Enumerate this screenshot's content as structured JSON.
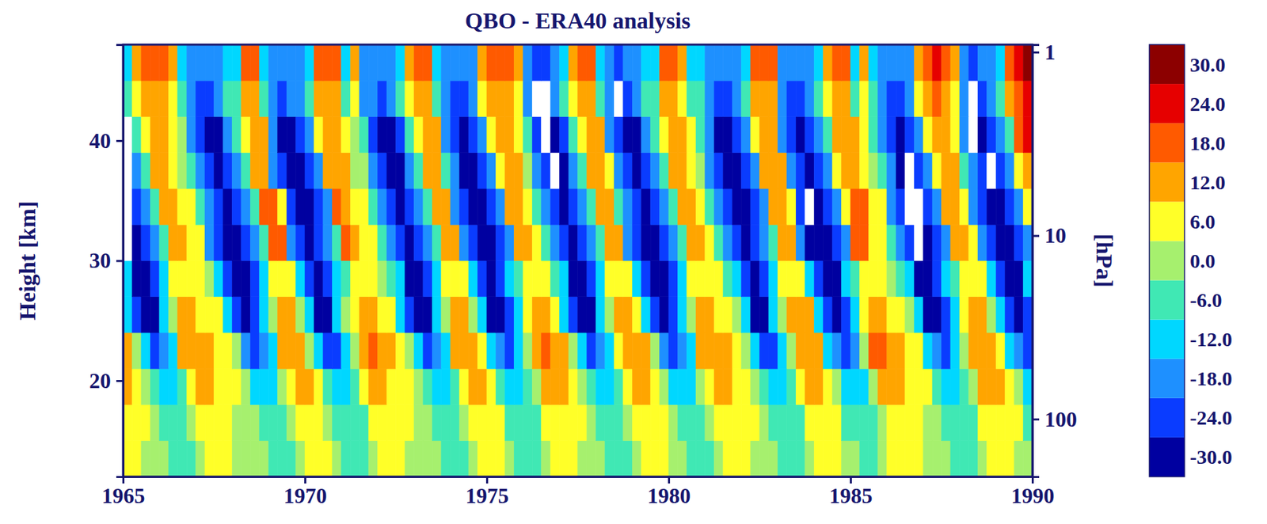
{
  "chart_data": {
    "type": "heatmap",
    "title": "QBO - ERA40 analysis",
    "y_label": "Height [km]",
    "y2_label": "[hPa]",
    "xlim": [
      1965,
      1990
    ],
    "xticks": [
      1965,
      1970,
      1975,
      1980,
      1985,
      1990
    ],
    "ylim": [
      12,
      48
    ],
    "yticks": [
      20,
      30,
      40
    ],
    "y2lim": [
      206,
      0.91
    ],
    "y2ticks": [
      1,
      10,
      100
    ],
    "log": "y2",
    "x": [
      1965.125,
      1965.375,
      1965.625,
      1965.875,
      1966.125,
      1966.375,
      1966.625,
      1966.875,
      1967.125,
      1967.375,
      1967.625,
      1967.875,
      1968.125,
      1968.375,
      1968.625,
      1968.875,
      1969.125,
      1969.375,
      1969.625,
      1969.875,
      1970.125,
      1970.375,
      1970.625,
      1970.875,
      1971.125,
      1971.375,
      1971.625,
      1971.875,
      1972.125,
      1972.375,
      1972.625,
      1972.875,
      1973.125,
      1973.375,
      1973.625,
      1973.875,
      1974.125,
      1974.375,
      1974.625,
      1974.875,
      1975.125,
      1975.375,
      1975.625,
      1975.875,
      1976.125,
      1976.375,
      1976.625,
      1976.875,
      1977.125,
      1977.375,
      1977.625,
      1977.875,
      1978.125,
      1978.375,
      1978.625,
      1978.875,
      1979.125,
      1979.375,
      1979.625,
      1979.875,
      1980.125,
      1980.375,
      1980.625,
      1980.875,
      1981.125,
      1981.375,
      1981.625,
      1981.875,
      1982.125,
      1982.375,
      1982.625,
      1982.875,
      1983.125,
      1983.375,
      1983.625,
      1983.875,
      1984.125,
      1984.375,
      1984.625,
      1984.875,
      1985.125,
      1985.375,
      1985.625,
      1985.875,
      1986.125,
      1986.375,
      1986.625,
      1986.875,
      1987.125,
      1987.375,
      1987.625,
      1987.875,
      1988.125,
      1988.375,
      1988.625,
      1988.875,
      1989.125,
      1989.375,
      1989.625,
      1989.875
    ],
    "y": [
      13.5,
      16.5,
      19.5,
      22.5,
      25.5,
      28.5,
      31.5,
      34.5,
      37.5,
      40.5,
      43.5,
      46.5
    ],
    "values": [
      [
        3,
        3,
        1,
        1,
        -2,
        -4,
        -4,
        -4,
        -2,
        3,
        3,
        3,
        1,
        1,
        0,
        -2,
        -4,
        -4,
        -4,
        1,
        3,
        3,
        3,
        -2,
        -4,
        -4,
        -4,
        -2,
        3,
        3,
        3,
        1,
        1,
        0,
        -2,
        -4,
        -4,
        -4,
        -2,
        3,
        3,
        3,
        1,
        -4,
        -4,
        -4,
        -2,
        3,
        3,
        3,
        1,
        1,
        -2,
        -4,
        -4,
        -4,
        -2,
        3,
        3,
        3,
        1,
        -2,
        -4,
        -4,
        -4,
        1,
        3,
        3,
        3,
        1,
        1,
        -2,
        -4,
        -4,
        -4,
        -2,
        3,
        3,
        3,
        1,
        -2,
        -4,
        -4,
        -2,
        3,
        3,
        3,
        3,
        1,
        1,
        -2,
        -4,
        -4,
        -4,
        -2,
        3,
        3,
        3,
        1,
        1
      ],
      [
        5,
        3,
        3,
        -2,
        -5,
        -9,
        -5,
        -2,
        5,
        5,
        5,
        3,
        1,
        1,
        -2,
        -5,
        -9,
        -5,
        -2,
        5,
        5,
        5,
        -2,
        -5,
        -9,
        -9,
        -5,
        5,
        5,
        5,
        3,
        3,
        1,
        -2,
        -5,
        -9,
        -5,
        -2,
        5,
        5,
        5,
        3,
        -5,
        -9,
        -9,
        -5,
        3,
        5,
        5,
        3,
        3,
        -2,
        -5,
        -9,
        -5,
        -2,
        5,
        5,
        5,
        3,
        -2,
        -5,
        -9,
        -5,
        -2,
        5,
        5,
        5,
        3,
        3,
        -2,
        -5,
        -9,
        -9,
        -5,
        5,
        5,
        5,
        3,
        -5,
        -9,
        -9,
        -5,
        -2,
        5,
        5,
        5,
        3,
        1,
        1,
        -5,
        -9,
        -9,
        -5,
        3,
        5,
        5,
        3,
        3,
        -5
      ],
      [
        10,
        6,
        -1,
        -6,
        -15,
        -11,
        -6,
        6,
        10,
        10,
        6,
        3,
        3,
        -1,
        -11,
        -15,
        -11,
        -1,
        6,
        10,
        10,
        6,
        -6,
        -15,
        -15,
        -6,
        6,
        10,
        10,
        6,
        6,
        3,
        -1,
        -6,
        -15,
        -11,
        -6,
        6,
        10,
        10,
        6,
        -6,
        -11,
        -15,
        -6,
        -1,
        10,
        10,
        10,
        6,
        -1,
        -6,
        -15,
        -11,
        -6,
        6,
        10,
        10,
        6,
        -1,
        -11,
        -15,
        -11,
        -1,
        6,
        10,
        10,
        6,
        3,
        -1,
        -6,
        -15,
        -15,
        -6,
        6,
        10,
        10,
        6,
        -1,
        -11,
        -15,
        -11,
        -1,
        10,
        10,
        10,
        6,
        6,
        3,
        -6,
        -11,
        -15,
        -6,
        -1,
        10,
        14,
        10,
        6,
        -1,
        -11
      ],
      [
        10,
        -3,
        -11,
        -24,
        -19,
        -11,
        10,
        14,
        14,
        10,
        6,
        6,
        -3,
        -19,
        -24,
        -19,
        -11,
        10,
        14,
        14,
        -3,
        -11,
        -24,
        -24,
        -11,
        -3,
        10,
        18,
        14,
        10,
        6,
        -3,
        -11,
        -24,
        -19,
        -11,
        10,
        14,
        14,
        6,
        -11,
        -19,
        -24,
        -11,
        -3,
        14,
        18,
        14,
        10,
        -3,
        -11,
        -24,
        -19,
        -11,
        6,
        14,
        14,
        10,
        -3,
        -19,
        -24,
        -19,
        -11,
        10,
        14,
        14,
        10,
        6,
        -3,
        -11,
        -24,
        -24,
        -11,
        -3,
        10,
        14,
        10,
        -11,
        -19,
        -24,
        -19,
        -3,
        18,
        18,
        14,
        10,
        6,
        6,
        -11,
        -19,
        -24,
        -11,
        -3,
        10,
        14,
        14,
        6,
        -11,
        -19,
        -24
      ],
      [
        -14,
        -24,
        -30,
        -30,
        -14,
        -3,
        10,
        10,
        7,
        4,
        4,
        -14,
        -24,
        -30,
        -24,
        -14,
        -3,
        10,
        10,
        -3,
        -14,
        -30,
        -30,
        -14,
        -3,
        7,
        10,
        10,
        7,
        4,
        -14,
        -24,
        -30,
        -30,
        -14,
        -3,
        10,
        10,
        -3,
        -14,
        -30,
        -30,
        -24,
        -14,
        7,
        10,
        10,
        4,
        -14,
        -24,
        -30,
        -30,
        -14,
        -3,
        10,
        10,
        4,
        -14,
        -24,
        -30,
        -24,
        -14,
        -3,
        10,
        10,
        7,
        4,
        -3,
        -14,
        -30,
        -30,
        -14,
        -3,
        14,
        14,
        10,
        -14,
        -24,
        -30,
        -24,
        -14,
        7,
        10,
        10,
        7,
        4,
        -3,
        -14,
        -30,
        -30,
        -24,
        -14,
        7,
        10,
        10,
        -3,
        -14,
        -24,
        -30,
        -24
      ],
      [
        -15,
        -28,
        -28,
        -24,
        -15,
        5,
        8,
        8,
        5,
        2,
        -15,
        -24,
        -28,
        -28,
        -24,
        -15,
        8,
        8,
        5,
        -15,
        -24,
        -28,
        -24,
        -15,
        -4,
        8,
        8,
        5,
        2,
        -4,
        -15,
        -28,
        -28,
        -24,
        -15,
        5,
        8,
        8,
        -15,
        -24,
        -28,
        -24,
        -15,
        -4,
        8,
        8,
        5,
        -4,
        -15,
        -28,
        -28,
        -24,
        -15,
        5,
        8,
        8,
        -15,
        -24,
        -28,
        -28,
        -24,
        -15,
        8,
        8,
        5,
        5,
        -4,
        -15,
        -24,
        -28,
        -24,
        -15,
        5,
        8,
        8,
        -15,
        -24,
        -28,
        -28,
        -15,
        -4,
        8,
        8,
        5,
        2,
        -4,
        -15,
        -28,
        -28,
        -24,
        -15,
        -4,
        8,
        8,
        5,
        -15,
        -24,
        -28,
        -28,
        -15
      ],
      [
        -36,
        -30,
        -26,
        -16,
        -5,
        12,
        12,
        7,
        3,
        -16,
        -26,
        -30,
        -30,
        -26,
        -16,
        -5,
        18,
        18,
        -16,
        -26,
        -30,
        -26,
        -16,
        -5,
        18,
        12,
        7,
        3,
        -5,
        -16,
        -26,
        -30,
        -26,
        -16,
        -5,
        12,
        12,
        -16,
        -26,
        -30,
        -30,
        -26,
        -16,
        12,
        12,
        7,
        -5,
        -16,
        -26,
        -30,
        -26,
        -16,
        -5,
        12,
        12,
        -16,
        -26,
        -30,
        -30,
        -26,
        -16,
        -5,
        12,
        12,
        7,
        -5,
        -16,
        -26,
        -30,
        -26,
        -16,
        -5,
        12,
        12,
        -16,
        -30,
        -30,
        -30,
        -26,
        -16,
        18,
        18,
        7,
        7,
        -5,
        -16,
        -26,
        -36,
        -30,
        -26,
        -16,
        12,
        12,
        3,
        -16,
        -26,
        -30,
        -30,
        -26,
        -16
      ],
      [
        -36,
        -26,
        -16,
        -5,
        12,
        12,
        7,
        3,
        -5,
        -16,
        -26,
        -30,
        -26,
        -16,
        -5,
        18,
        18,
        6,
        -26,
        -30,
        -30,
        -26,
        -16,
        18,
        12,
        7,
        3,
        -5,
        -16,
        -26,
        -30,
        -26,
        -16,
        -5,
        12,
        12,
        -16,
        -26,
        -30,
        -30,
        -26,
        -16,
        12,
        12,
        7,
        -5,
        -16,
        -26,
        -30,
        -26,
        -16,
        -5,
        12,
        12,
        -5,
        -16,
        -26,
        -30,
        -26,
        -16,
        -5,
        12,
        12,
        7,
        -5,
        -16,
        -26,
        -30,
        -30,
        -26,
        -16,
        12,
        12,
        7,
        -26,
        -36,
        -30,
        -26,
        -16,
        7,
        18,
        18,
        7,
        3,
        -16,
        -26,
        -36,
        -36,
        -26,
        -16,
        12,
        12,
        7,
        -16,
        -26,
        -30,
        -30,
        -26,
        -16,
        7
      ],
      [
        -36,
        -16,
        -5,
        10,
        10,
        6,
        2,
        -5,
        -16,
        -26,
        -30,
        -26,
        -16,
        -5,
        14,
        14,
        -16,
        -26,
        -30,
        -30,
        -26,
        -16,
        10,
        14,
        10,
        2,
        2,
        -16,
        -26,
        -30,
        -30,
        -16,
        -5,
        10,
        10,
        -5,
        -16,
        -30,
        -30,
        -26,
        -16,
        6,
        10,
        10,
        2,
        -16,
        -26,
        -36,
        -30,
        -16,
        -5,
        10,
        10,
        6,
        -16,
        -26,
        -30,
        -26,
        -16,
        -5,
        10,
        10,
        6,
        2,
        -16,
        -26,
        -30,
        -30,
        -26,
        -16,
        10,
        10,
        10,
        -16,
        -26,
        -30,
        -26,
        -16,
        6,
        10,
        10,
        6,
        2,
        -5,
        -16,
        -30,
        -36,
        -26,
        -16,
        6,
        10,
        10,
        -5,
        -16,
        -26,
        -36,
        -26,
        -16,
        6,
        14
      ],
      [
        -36,
        -5,
        6,
        10,
        10,
        6,
        2,
        -16,
        -26,
        -30,
        -30,
        -16,
        -5,
        6,
        10,
        10,
        -16,
        -30,
        -30,
        -26,
        -16,
        6,
        10,
        10,
        6,
        2,
        -5,
        -26,
        -30,
        -30,
        -26,
        -5,
        6,
        10,
        10,
        -16,
        -26,
        -30,
        -26,
        -16,
        6,
        10,
        10,
        6,
        -5,
        -26,
        -36,
        -30,
        -26,
        -5,
        6,
        10,
        10,
        -16,
        -26,
        -30,
        -30,
        -16,
        -5,
        6,
        10,
        10,
        6,
        -5,
        -16,
        -30,
        -30,
        -26,
        -16,
        6,
        10,
        10,
        -16,
        -26,
        -30,
        -26,
        -16,
        -5,
        10,
        10,
        10,
        6,
        -5,
        -16,
        -26,
        -30,
        -26,
        -16,
        6,
        14,
        14,
        6,
        -16,
        -36,
        -30,
        -26,
        -16,
        -5,
        18,
        24
      ],
      [
        -5,
        8,
        14,
        14,
        14,
        8,
        -4,
        -16,
        -26,
        -26,
        -16,
        -5,
        -4,
        14,
        14,
        -5,
        -16,
        -26,
        -16,
        -16,
        -4,
        14,
        14,
        14,
        -4,
        8,
        -16,
        -16,
        -26,
        -16,
        -5,
        8,
        14,
        14,
        -5,
        -16,
        -26,
        -26,
        -16,
        8,
        14,
        14,
        14,
        8,
        -16,
        -36,
        -36,
        -16,
        -5,
        8,
        14,
        14,
        -4,
        -16,
        -36,
        -26,
        -16,
        -5,
        -4,
        14,
        14,
        8,
        -4,
        -5,
        -16,
        -26,
        -26,
        -16,
        -4,
        14,
        14,
        14,
        -16,
        -26,
        -26,
        -16,
        -5,
        8,
        14,
        14,
        -4,
        8,
        -5,
        -16,
        -26,
        -26,
        -16,
        8,
        14,
        18,
        14,
        8,
        -16,
        -36,
        -26,
        -16,
        -5,
        14,
        18,
        24
      ],
      [
        -10,
        12,
        18,
        18,
        18,
        12,
        -10,
        -20,
        -20,
        -20,
        -20,
        -10,
        -10,
        18,
        18,
        -10,
        -20,
        -20,
        -20,
        -20,
        -10,
        18,
        18,
        18,
        -10,
        12,
        -20,
        -20,
        -20,
        -20,
        -10,
        12,
        18,
        18,
        -10,
        -20,
        -20,
        -20,
        -20,
        12,
        18,
        18,
        18,
        12,
        -20,
        -24,
        -24,
        -20,
        -10,
        12,
        18,
        18,
        -10,
        -20,
        -24,
        -20,
        -20,
        -10,
        -10,
        18,
        18,
        12,
        -10,
        -10,
        -20,
        -20,
        -20,
        -20,
        -10,
        18,
        18,
        18,
        -20,
        -20,
        -20,
        -20,
        -10,
        12,
        18,
        18,
        -10,
        12,
        -10,
        -20,
        -20,
        -20,
        -20,
        12,
        18,
        24,
        18,
        12,
        -20,
        -24,
        -20,
        -20,
        -10,
        18,
        24,
        30
      ]
    ],
    "colorbar": {
      "range": [
        -33,
        33
      ],
      "ticks": [
        {
          "value": -30,
          "label": "-30.0"
        },
        {
          "value": -24,
          "label": "-24.0"
        },
        {
          "value": -18,
          "label": "-18.0"
        },
        {
          "value": -12,
          "label": "-12.0"
        },
        {
          "value": -6,
          "label": "-6.0"
        },
        {
          "value": 0,
          "label": "0.0"
        },
        {
          "value": 6,
          "label": "6.0"
        },
        {
          "value": 12,
          "label": "12.0"
        },
        {
          "value": 18,
          "label": "18.0"
        },
        {
          "value": 24,
          "label": "24.0"
        },
        {
          "value": 30,
          "label": "30.0"
        }
      ],
      "colors": [
        "#0000a0",
        "#0a3cff",
        "#1e90ff",
        "#00d7ff",
        "#40e8b4",
        "#a6f06e",
        "#ffff28",
        "#ffa500",
        "#ff5a00",
        "#e60000",
        "#8c0000"
      ]
    }
  }
}
